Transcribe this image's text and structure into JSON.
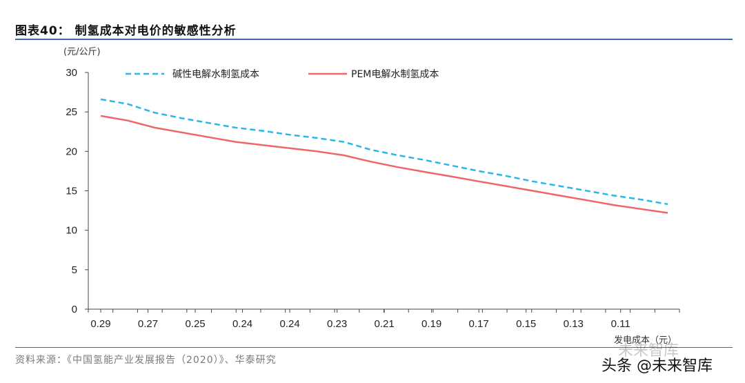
{
  "header": {
    "title": "图表40：  制氢成本对电价的敏感性分析"
  },
  "footer": {
    "source": "资料来源：《中国氢能产业发展报告（2020）》、华泰研究"
  },
  "watermark": {
    "text": "头条 @未来智库",
    "faint_text": "未来智库"
  },
  "chart_data": {
    "type": "line",
    "ylabel": "(元/公斤)",
    "xlabel": "发电成本（元）",
    "ylim": [
      0,
      30
    ],
    "yticks": [
      0,
      5,
      10,
      15,
      20,
      25,
      30
    ],
    "xtick_labels": [
      "0.29",
      "0.27",
      "0.25",
      "0.24",
      "0.24",
      "0.23",
      "0.21",
      "0.19",
      "0.17",
      "0.15",
      "0.13",
      "0.11"
    ],
    "legend_position": "top",
    "grid": false,
    "x": [
      0.29,
      0.28,
      0.27,
      0.26,
      0.25,
      0.24,
      0.24,
      0.24,
      0.23,
      0.23,
      0.22,
      0.21,
      0.2,
      0.19,
      0.18,
      0.17,
      0.16,
      0.15,
      0.14,
      0.13,
      0.12,
      0.11
    ],
    "series": [
      {
        "name": "碱性电解水制氢成本",
        "color": "#29b6e8",
        "style": "dashed",
        "values": [
          26.6,
          26.0,
          24.9,
          24.2,
          23.6,
          23.0,
          22.6,
          22.1,
          21.7,
          21.2,
          20.2,
          19.5,
          18.9,
          18.2,
          17.5,
          16.9,
          16.2,
          15.6,
          15.0,
          14.4,
          13.9,
          13.3
        ]
      },
      {
        "name": "PEM电解水制氢成本",
        "color": "#f0646a",
        "style": "solid",
        "values": [
          24.5,
          23.9,
          23.0,
          22.4,
          21.8,
          21.2,
          20.8,
          20.4,
          20.0,
          19.5,
          18.7,
          18.0,
          17.4,
          16.8,
          16.2,
          15.6,
          15.0,
          14.4,
          13.8,
          13.2,
          12.7,
          12.2
        ]
      }
    ]
  }
}
